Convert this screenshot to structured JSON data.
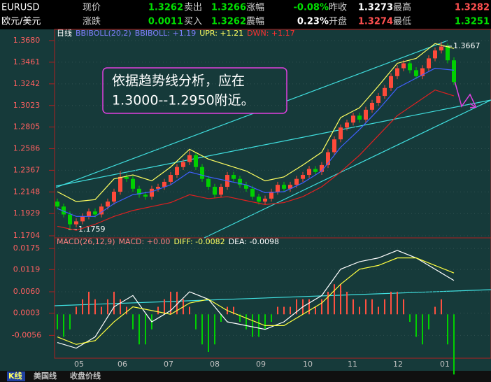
{
  "header": {
    "rows": [
      [
        "EURUSD",
        "现价",
        "1.3262",
        "卖出",
        "1.3266",
        "涨幅",
        "-0.08%",
        "昨收",
        "1.3273",
        "最高",
        "1.3282"
      ],
      [
        "欧元/美元",
        "涨跌",
        "0.0011",
        "买入",
        "1.3262",
        "震幅",
        "0.23%",
        "开盘",
        "1.3274",
        "最低",
        "1.3251"
      ]
    ]
  },
  "chart_data": [
    {
      "type": "candlestick",
      "legend": [
        "日线",
        "BBIBOLL(20,2)",
        "BBIBOLL: +1.19",
        "UPR: +1.21",
        "DWN: +1.17"
      ],
      "ylim": [
        1.1704,
        1.368
      ],
      "yticks": [
        {
          "value": 1.368,
          "label": "1.3680"
        },
        1.3461,
        1.3242,
        1.3023,
        1.2805,
        1.2586,
        1.2367,
        1.2148,
        1.1929,
        1.1704
      ],
      "ohlc": [
        [
          1.205,
          1.208,
          1.197,
          1.2
        ],
        [
          1.2,
          1.203,
          1.189,
          1.192
        ],
        [
          1.192,
          1.195,
          1.1759,
          1.182
        ],
        [
          1.182,
          1.188,
          1.179,
          1.185
        ],
        [
          1.185,
          1.193,
          1.182,
          1.19
        ],
        [
          1.19,
          1.198,
          1.187,
          1.195
        ],
        [
          1.195,
          1.198,
          1.189,
          1.192
        ],
        [
          1.192,
          1.203,
          1.189,
          1.2
        ],
        [
          1.2,
          1.208,
          1.197,
          1.205
        ],
        [
          1.205,
          1.218,
          1.202,
          1.215
        ],
        [
          1.215,
          1.236,
          1.212,
          1.23
        ],
        [
          1.23,
          1.233,
          1.225,
          1.228
        ],
        [
          1.228,
          1.231,
          1.215,
          1.218
        ],
        [
          1.218,
          1.221,
          1.209,
          1.212
        ],
        [
          1.212,
          1.215,
          1.207,
          1.21
        ],
        [
          1.21,
          1.221,
          1.207,
          1.218
        ],
        [
          1.218,
          1.223,
          1.215,
          1.22
        ],
        [
          1.22,
          1.228,
          1.217,
          1.225
        ],
        [
          1.225,
          1.235,
          1.222,
          1.232
        ],
        [
          1.232,
          1.243,
          1.229,
          1.24
        ],
        [
          1.24,
          1.248,
          1.237,
          1.245
        ],
        [
          1.245,
          1.257,
          1.242,
          1.252
        ],
        [
          1.252,
          1.255,
          1.237,
          1.24
        ],
        [
          1.24,
          1.243,
          1.225,
          1.228
        ],
        [
          1.228,
          1.231,
          1.217,
          1.22
        ],
        [
          1.22,
          1.223,
          1.209,
          1.212
        ],
        [
          1.212,
          1.223,
          1.209,
          1.22
        ],
        [
          1.22,
          1.235,
          1.217,
          1.232
        ],
        [
          1.232,
          1.235,
          1.225,
          1.228
        ],
        [
          1.228,
          1.231,
          1.219,
          1.222
        ],
        [
          1.222,
          1.225,
          1.215,
          1.218
        ],
        [
          1.218,
          1.221,
          1.207,
          1.21
        ],
        [
          1.21,
          1.213,
          1.202,
          1.205
        ],
        [
          1.205,
          1.211,
          1.202,
          1.208
        ],
        [
          1.208,
          1.218,
          1.205,
          1.215
        ],
        [
          1.215,
          1.225,
          1.212,
          1.222
        ],
        [
          1.222,
          1.225,
          1.215,
          1.218
        ],
        [
          1.218,
          1.225,
          1.215,
          1.222
        ],
        [
          1.222,
          1.231,
          1.219,
          1.228
        ],
        [
          1.228,
          1.235,
          1.225,
          1.232
        ],
        [
          1.232,
          1.241,
          1.229,
          1.238
        ],
        [
          1.238,
          1.241,
          1.232,
          1.235
        ],
        [
          1.235,
          1.245,
          1.232,
          1.242
        ],
        [
          1.242,
          1.258,
          1.239,
          1.255
        ],
        [
          1.255,
          1.271,
          1.252,
          1.268
        ],
        [
          1.268,
          1.283,
          1.265,
          1.28
        ],
        [
          1.28,
          1.288,
          1.277,
          1.285
        ],
        [
          1.285,
          1.295,
          1.282,
          1.292
        ],
        [
          1.292,
          1.295,
          1.285,
          1.288
        ],
        [
          1.288,
          1.301,
          1.285,
          1.298
        ],
        [
          1.298,
          1.308,
          1.295,
          1.305
        ],
        [
          1.305,
          1.315,
          1.302,
          1.312
        ],
        [
          1.312,
          1.323,
          1.309,
          1.32
        ],
        [
          1.32,
          1.335,
          1.317,
          1.332
        ],
        [
          1.332,
          1.343,
          1.329,
          1.34
        ],
        [
          1.34,
          1.348,
          1.337,
          1.345
        ],
        [
          1.345,
          1.348,
          1.335,
          1.338
        ],
        [
          1.338,
          1.341,
          1.329,
          1.332
        ],
        [
          1.332,
          1.343,
          1.329,
          1.34
        ],
        [
          1.34,
          1.353,
          1.337,
          1.35
        ],
        [
          1.35,
          1.361,
          1.347,
          1.358
        ],
        [
          1.358,
          1.3667,
          1.355,
          1.362
        ],
        [
          1.362,
          1.365,
          1.345,
          1.348
        ],
        [
          1.348,
          1.351,
          1.323,
          1.326
        ]
      ],
      "x": [
        0,
        3,
        6,
        9,
        12,
        15,
        18,
        21,
        24,
        27,
        30,
        33,
        36,
        39,
        42,
        45,
        48,
        51,
        54,
        57,
        60,
        63
      ],
      "series": [
        {
          "name": "BBIBOLL",
          "color": "#4060ff",
          "values": [
            1.198,
            1.19,
            1.19,
            1.203,
            1.212,
            1.215,
            1.222,
            1.235,
            1.23,
            1.226,
            1.222,
            1.214,
            1.215,
            1.224,
            1.236,
            1.26,
            1.278,
            1.298,
            1.32,
            1.33,
            1.34,
            1.338
          ]
        },
        {
          "name": "UPR",
          "color": "#ffff60",
          "values": [
            1.215,
            1.205,
            1.207,
            1.228,
            1.232,
            1.226,
            1.24,
            1.258,
            1.248,
            1.242,
            1.236,
            1.226,
            1.23,
            1.242,
            1.255,
            1.29,
            1.3,
            1.322,
            1.345,
            1.35,
            1.365,
            1.36
          ]
        },
        {
          "name": "DWN",
          "color": "#e02020",
          "values": [
            1.18,
            1.176,
            1.182,
            1.19,
            1.196,
            1.2,
            1.204,
            1.212,
            1.208,
            1.21,
            1.206,
            1.202,
            1.204,
            1.21,
            1.22,
            1.235,
            1.252,
            1.272,
            1.292,
            1.305,
            1.318,
            1.312
          ]
        }
      ],
      "annotations": {
        "note": [
          "依据趋势线分析，应在",
          "1.3000--1.2950附近。"
        ],
        "high": "1.3667",
        "low": "1.1759"
      }
    },
    {
      "type": "macd",
      "legend": [
        "MACD(26,12,9)",
        "MACD: +0.00",
        "DIFF: -0.0082",
        "DEA: -0.0098"
      ],
      "ylim": [
        -0.0113,
        0.0194
      ],
      "yticks": [
        0.0175,
        0.0119,
        {
          "value": 0.006,
          "label": "0.0060"
        },
        0.0003,
        -0.0056
      ],
      "macd": [
        -0.004,
        -0.006,
        -0.004,
        0.002,
        0.004,
        0.006,
        0.004,
        0.002,
        0.004,
        0.006,
        0.004,
        0.002,
        -0.004,
        -0.008,
        -0.008,
        -0.004,
        0.002,
        0.004,
        0.006,
        0.006,
        0.004,
        0.002,
        -0.004,
        -0.008,
        -0.01,
        -0.008,
        -0.002,
        0.002,
        0.002,
        -0.002,
        -0.004,
        -0.006,
        -0.006,
        -0.004,
        -0.002,
        0.002,
        0.002,
        0.002,
        0.004,
        0.004,
        0.004,
        0.002,
        0.004,
        0.006,
        0.008,
        0.008,
        0.006,
        0.004,
        0.002,
        0.004,
        0.004,
        0.002,
        0.004,
        0.006,
        0.006,
        0.004,
        -0.002,
        -0.006,
        -0.008,
        -0.004,
        0.002,
        0.004,
        -0.008,
        -0.016
      ],
      "x": [
        0,
        3,
        6,
        9,
        12,
        15,
        18,
        21,
        24,
        27,
        30,
        33,
        36,
        39,
        42,
        45,
        48,
        51,
        54,
        57,
        60,
        63
      ],
      "series": [
        {
          "name": "DIFF",
          "color": "#ffffff",
          "values": [
            -0.0075,
            -0.009,
            -0.006,
            0.002,
            0.005,
            -0.002,
            0.001,
            0.006,
            0.004,
            -0.002,
            -0.003,
            -0.004,
            -0.002,
            0.002,
            0.005,
            0.012,
            0.014,
            0.015,
            0.017,
            0.015,
            0.012,
            0.009
          ]
        },
        {
          "name": "DEA",
          "color": "#ffff40",
          "values": [
            -0.006,
            -0.008,
            -0.007,
            -0.002,
            0.002,
            0.001,
            0,
            0.003,
            0.004,
            0.001,
            -0.001,
            -0.003,
            -0.003,
            0,
            0.003,
            0.008,
            0.012,
            0.013,
            0.015,
            0.015,
            0.013,
            0.011
          ]
        }
      ]
    }
  ],
  "x_axis": {
    "labels": [
      "05",
      "06",
      "07",
      "08",
      "09",
      "10",
      "11",
      "12",
      "01"
    ]
  },
  "tabs": [
    "K线",
    "美国线",
    "收盘价线"
  ]
}
